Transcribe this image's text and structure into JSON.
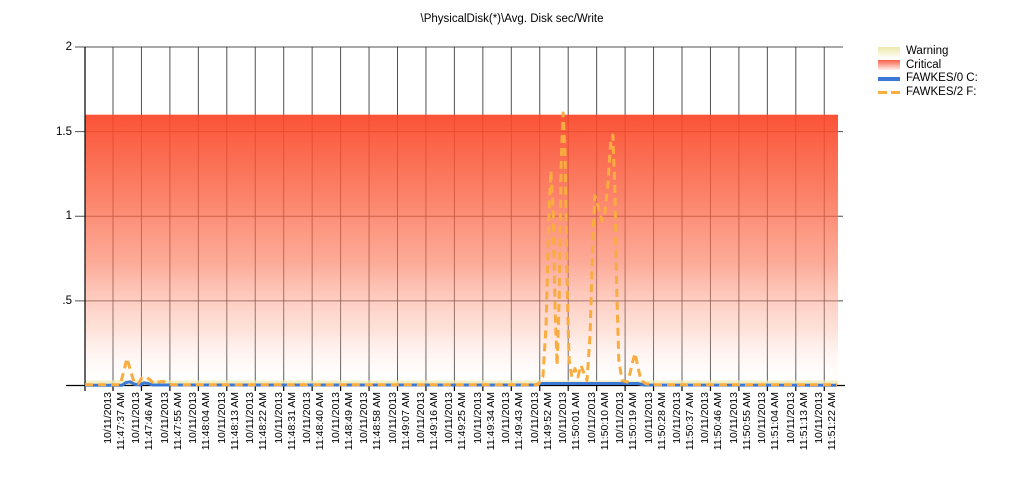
{
  "title": "\\PhysicalDisk(*)\\Avg. Disk sec/Write",
  "colors": {
    "critical_top": "#FB4628",
    "warning_band": "#EEE9B4",
    "series_blue": "#3C79D6",
    "series_orange": "#F9AC40",
    "gridline": "#2B2B2B",
    "axis": "#000000",
    "text": "#000000",
    "background": "#FFFFFF"
  },
  "legend": [
    {
      "label": "Warning",
      "type": "region-warning"
    },
    {
      "label": "Critical",
      "type": "region-critical"
    },
    {
      "label": "FAWKES/0 C:",
      "type": "line-solid-blue"
    },
    {
      "label": "FAWKES/2 F:",
      "type": "line-dashed-orange"
    }
  ],
  "chart_data": {
    "type": "line",
    "title": "\\PhysicalDisk(*)\\Avg. Disk sec/Write",
    "xlabel": "",
    "ylabel": "",
    "ylim": [
      0,
      2
    ],
    "yticks": [
      {
        "value": 2,
        "label": "2"
      },
      {
        "value": 1.5,
        "label": "1.5"
      },
      {
        "value": 1,
        "label": "1"
      },
      {
        "value": 0.5,
        "label": ".5"
      }
    ],
    "grid": true,
    "legend_position": "right",
    "x_interval_seconds": 9,
    "x_categories": [
      {
        "date": "10/11/2013",
        "time": "11:47:37 AM"
      },
      {
        "date": "10/11/2013",
        "time": "11:47:46 AM"
      },
      {
        "date": "10/11/2013",
        "time": "11:47:55 AM"
      },
      {
        "date": "10/11/2013",
        "time": "11:48:04 AM"
      },
      {
        "date": "10/11/2013",
        "time": "11:48:13 AM"
      },
      {
        "date": "10/11/2013",
        "time": "11:48:22 AM"
      },
      {
        "date": "10/11/2013",
        "time": "11:48:31 AM"
      },
      {
        "date": "10/11/2013",
        "time": "11:48:40 AM"
      },
      {
        "date": "10/11/2013",
        "time": "11:48:49 AM"
      },
      {
        "date": "10/11/2013",
        "time": "11:48:58 AM"
      },
      {
        "date": "10/11/2013",
        "time": "11:49:07 AM"
      },
      {
        "date": "10/11/2013",
        "time": "11:49:16 AM"
      },
      {
        "date": "10/11/2013",
        "time": "11:49:25 AM"
      },
      {
        "date": "10/11/2013",
        "time": "11:49:34 AM"
      },
      {
        "date": "10/11/2013",
        "time": "11:49:43 AM"
      },
      {
        "date": "10/11/2013",
        "time": "11:49:52 AM"
      },
      {
        "date": "10/11/2013",
        "time": "11:50:01 AM"
      },
      {
        "date": "10/11/2013",
        "time": "11:50:10 AM"
      },
      {
        "date": "10/11/2013",
        "time": "11:50:19 AM"
      },
      {
        "date": "10/11/2013",
        "time": "11:50:28 AM"
      },
      {
        "date": "10/11/2013",
        "time": "11:50:37 AM"
      },
      {
        "date": "10/11/2013",
        "time": "11:50:46 AM"
      },
      {
        "date": "10/11/2013",
        "time": "11:50:55 AM"
      },
      {
        "date": "10/11/2013",
        "time": "11:51:04 AM"
      },
      {
        "date": "10/11/2013",
        "time": "11:51:13 AM"
      },
      {
        "date": "10/11/2013",
        "time": "11:51:22 AM"
      }
    ],
    "regions": [
      {
        "name": "Critical",
        "from": 0,
        "to": 1.6,
        "style": "red-gradient-fade-down"
      },
      {
        "name": "Warning",
        "from": 0,
        "to": 0.03,
        "style": "cream-band"
      }
    ],
    "series": [
      {
        "name": "FAWKES/0 C:",
        "style": "solid",
        "color": "#3C79D6",
        "points": [
          [
            -0.98,
            0.002
          ],
          [
            0.32,
            0.002
          ],
          [
            0.46,
            0.018
          ],
          [
            0.6,
            0.022
          ],
          [
            0.74,
            0.008
          ],
          [
            0.95,
            0.003
          ],
          [
            1.09,
            0.016
          ],
          [
            1.23,
            0.012
          ],
          [
            1.41,
            0.003
          ],
          [
            14.83,
            0.003
          ],
          [
            15.04,
            0.012
          ],
          [
            18.45,
            0.012
          ],
          [
            18.66,
            0.003
          ],
          [
            25.45,
            0.002
          ]
        ]
      },
      {
        "name": "FAWKES/2 F:",
        "style": "dashed",
        "color": "#F9AC40",
        "points": [
          [
            -0.98,
            0.004
          ],
          [
            0.25,
            0.004
          ],
          [
            0.39,
            0.09
          ],
          [
            0.49,
            0.16
          ],
          [
            0.63,
            0.08
          ],
          [
            0.74,
            0.02
          ],
          [
            0.88,
            0.01
          ],
          [
            1.02,
            0.045
          ],
          [
            1.16,
            0.05
          ],
          [
            1.3,
            0.035
          ],
          [
            1.44,
            0.01
          ],
          [
            1.58,
            0.02
          ],
          [
            1.76,
            0.025
          ],
          [
            1.9,
            0.012
          ],
          [
            2.07,
            0.005
          ],
          [
            14.94,
            0.005
          ],
          [
            15.11,
            0.05
          ],
          [
            15.22,
            0.35
          ],
          [
            15.32,
            1.0
          ],
          [
            15.39,
            1.27
          ],
          [
            15.47,
            1.05
          ],
          [
            15.54,
            0.45
          ],
          [
            15.61,
            0.12
          ],
          [
            15.68,
            0.5
          ],
          [
            15.75,
            1.3
          ],
          [
            15.82,
            1.61
          ],
          [
            15.89,
            1.35
          ],
          [
            15.96,
            0.6
          ],
          [
            16.03,
            0.15
          ],
          [
            16.13,
            0.05
          ],
          [
            16.24,
            0.1
          ],
          [
            16.34,
            0.05
          ],
          [
            16.45,
            0.12
          ],
          [
            16.56,
            0.07
          ],
          [
            16.66,
            0.03
          ],
          [
            16.77,
            0.3
          ],
          [
            16.87,
            0.9
          ],
          [
            16.94,
            1.12
          ],
          [
            17.05,
            1.06
          ],
          [
            17.19,
            0.97
          ],
          [
            17.29,
            1.02
          ],
          [
            17.4,
            1.2
          ],
          [
            17.5,
            1.45
          ],
          [
            17.57,
            1.48
          ],
          [
            17.64,
            1.15
          ],
          [
            17.71,
            0.55
          ],
          [
            17.78,
            0.15
          ],
          [
            17.89,
            0.03
          ],
          [
            18.07,
            0.02
          ],
          [
            18.17,
            0.07
          ],
          [
            18.28,
            0.15
          ],
          [
            18.35,
            0.19
          ],
          [
            18.45,
            0.11
          ],
          [
            18.56,
            0.03
          ],
          [
            18.73,
            0.01
          ],
          [
            19.05,
            0.005
          ],
          [
            25.45,
            0.005
          ]
        ]
      }
    ]
  }
}
